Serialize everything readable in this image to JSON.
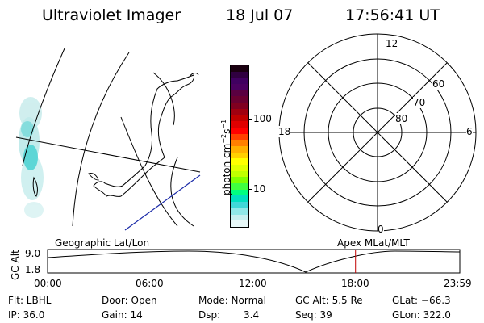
{
  "header": {
    "title": "Ultraviolet Imager",
    "date": "18 Jul 07",
    "time": "17:56:41 UT"
  },
  "colorbar": {
    "unit_label": "photon cm",
    "unit_exp1": "−2",
    "unit_mid": "s",
    "unit_exp2": "−1",
    "tick_labels": [
      "100",
      "10"
    ],
    "colors": [
      "#1a0010",
      "#300040",
      "#400060",
      "#4b0060",
      "#5a0040",
      "#6a0030",
      "#800020",
      "#a00010",
      "#c00000",
      "#e00000",
      "#ff0000",
      "#ff4000",
      "#ff8000",
      "#ffb000",
      "#ffd000",
      "#ffff00",
      "#e0ff00",
      "#c0ff00",
      "#80ff00",
      "#40ff40",
      "#00ff80",
      "#00e0c0",
      "#40d8d8",
      "#90e8e8",
      "#c8f0f0",
      "#e8f8f8"
    ]
  },
  "polar": {
    "mlt_labels": {
      "top": "12",
      "left": "18",
      "right": "6",
      "bottom": "0"
    },
    "lat_labels": [
      "60",
      "70",
      "80"
    ]
  },
  "timeline": {
    "ylabel": "GC Alt",
    "ytick_top": "9.0",
    "ytick_bottom": "1.8",
    "left_caption": "Geographic Lat/Lon",
    "right_caption": "Apex MLat/MLT",
    "xticks": [
      "00:00",
      "06:00",
      "12:00",
      "18:00",
      "23:59"
    ],
    "current_time_fraction": 0.747
  },
  "info": {
    "row1": {
      "flt": "Flt: LBHL",
      "door": "Door: Open",
      "mode": "Mode: Normal",
      "gcalt": "GC Alt: 5.5 Re",
      "glat": "GLat: −66.3"
    },
    "row2": {
      "ip": "IP: 36.0",
      "gain": "Gain: 14",
      "dsp_label": "Dsp:",
      "dsp_value": "3.4",
      "seq": "Seq: 39",
      "glon": "GLon: 322.0"
    }
  }
}
